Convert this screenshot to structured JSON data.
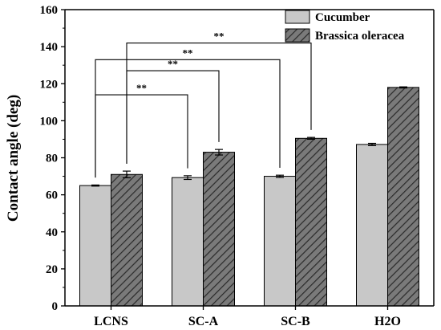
{
  "colors": {
    "cucumber_fill": "#c8c8c8",
    "brassica_fill": "#7a7a7a",
    "hatch_line": "#2a2a2a",
    "axis": "#000000"
  },
  "chart_data": {
    "type": "bar",
    "title": "",
    "xlabel": "",
    "ylabel": "Contact angle (deg)",
    "ylim": [
      0,
      160
    ],
    "yticks": [
      0,
      20,
      40,
      60,
      80,
      100,
      120,
      140,
      160
    ],
    "categories": [
      "LCNS",
      "SC-A",
      "SC-B",
      "H2O"
    ],
    "legend_position": "top-right",
    "series": [
      {
        "name": "Cucumber",
        "pattern": "solid",
        "values": [
          65,
          69.3,
          70,
          87.2
        ],
        "errors": [
          0.3,
          1.0,
          0.6,
          0.6
        ]
      },
      {
        "name": "Brassica oleracea",
        "pattern": "hatched",
        "values": [
          71,
          83,
          90.5,
          118
        ],
        "errors": [
          1.8,
          1.5,
          0.5,
          0.3
        ]
      }
    ],
    "significance": [
      {
        "label": "**",
        "from": "LCNS/Cucumber",
        "to": "SC-A/Cucumber"
      },
      {
        "label": "**",
        "from": "LCNS/Cucumber",
        "to": "SC-B/Cucumber"
      },
      {
        "label": "**",
        "from": "LCNS/Brassica oleracea",
        "to": "SC-A/Brassica oleracea"
      },
      {
        "label": "**",
        "from": "LCNS/Brassica oleracea",
        "to": "SC-B/Brassica oleracea"
      }
    ]
  }
}
